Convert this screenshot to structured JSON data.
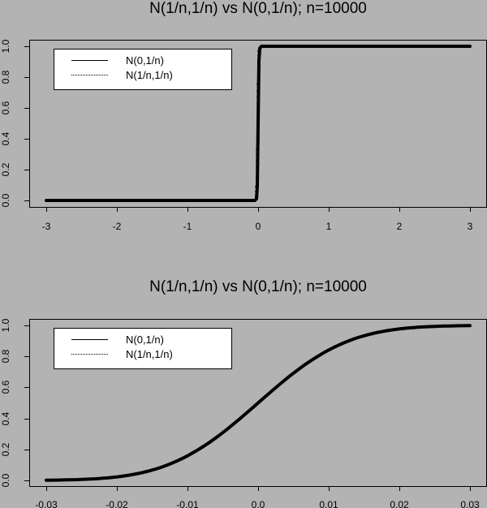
{
  "chart_data": [
    {
      "type": "line",
      "title": "N(1/n,1/n) vs N(0,1/n); n=10000",
      "xlabel": "",
      "ylabel": "",
      "xlim": [
        -3,
        3
      ],
      "ylim": [
        0,
        1
      ],
      "x_ticks": [
        "-3",
        "-2",
        "-1",
        "0",
        "1",
        "2",
        "3"
      ],
      "y_ticks": [
        "0.0",
        "0.2",
        "0.4",
        "0.6",
        "0.8",
        "1.0"
      ],
      "grid": false,
      "legend_position": "top-left",
      "legend": [
        {
          "label": "N(0,1/n)",
          "line_style": "solid"
        },
        {
          "label": "N(1/n,1/n)",
          "line_style": "dotted"
        }
      ],
      "series": [
        {
          "name": "N(0,1/n)",
          "line_style": "solid",
          "x": [
            -3,
            -2,
            -1,
            -0.05,
            -0.02,
            0,
            0.02,
            0.05,
            1,
            2,
            3
          ],
          "values": [
            0,
            0,
            0,
            0,
            0.023,
            0.5,
            0.977,
            1,
            1,
            1,
            1
          ]
        },
        {
          "name": "N(1/n,1/n)",
          "line_style": "dotted",
          "x": [
            -3,
            -2,
            -1,
            -0.05,
            -0.02,
            0,
            0.02,
            0.05,
            1,
            2,
            3
          ],
          "values": [
            0,
            0,
            0,
            0,
            0.023,
            0.5,
            0.977,
            1,
            1,
            1,
            1
          ]
        }
      ]
    },
    {
      "type": "line",
      "title": "N(1/n,1/n) vs N(0,1/n); n=10000",
      "xlabel": "",
      "ylabel": "",
      "xlim": [
        -0.03,
        0.03
      ],
      "ylim": [
        0,
        1
      ],
      "x_ticks": [
        "-0.03",
        "-0.02",
        "-0.01",
        "0.0",
        "0.01",
        "0.02",
        "0.03"
      ],
      "y_ticks": [
        "0.0",
        "0.2",
        "0.4",
        "0.6",
        "0.8",
        "1.0"
      ],
      "grid": false,
      "legend_position": "top-left",
      "legend": [
        {
          "label": "N(0,1/n)",
          "line_style": "solid"
        },
        {
          "label": "N(1/n,1/n)",
          "line_style": "dotted"
        }
      ],
      "series": [
        {
          "name": "N(0,1/n)",
          "line_style": "solid",
          "x": [
            -0.03,
            -0.025,
            -0.02,
            -0.015,
            -0.01,
            -0.005,
            0.0,
            0.005,
            0.01,
            0.015,
            0.02,
            0.025,
            0.03
          ],
          "values": [
            0.001,
            0.006,
            0.023,
            0.067,
            0.159,
            0.309,
            0.5,
            0.691,
            0.841,
            0.933,
            0.977,
            0.994,
            0.999
          ]
        },
        {
          "name": "N(1/n,1/n)",
          "line_style": "dotted",
          "x": [
            -0.03,
            -0.025,
            -0.02,
            -0.015,
            -0.01,
            -0.005,
            0.0,
            0.005,
            0.01,
            0.015,
            0.02,
            0.025,
            0.03
          ],
          "values": [
            0.001,
            0.006,
            0.023,
            0.067,
            0.159,
            0.309,
            0.5,
            0.691,
            0.841,
            0.933,
            0.977,
            0.994,
            0.999
          ]
        }
      ]
    }
  ],
  "plots": [
    {
      "title": "N(1/n,1/n) vs N(0,1/n); n=10000",
      "x_ticks": [
        "-3",
        "-2",
        "-1",
        "0",
        "1",
        "2",
        "3"
      ],
      "y_ticks": [
        "0.0",
        "0.2",
        "0.4",
        "0.6",
        "0.8",
        "1.0"
      ],
      "legend": [
        "N(0,1/n)",
        "N(1/n,1/n)"
      ]
    },
    {
      "title": "N(1/n,1/n) vs N(0,1/n); n=10000",
      "x_ticks": [
        "-0.03",
        "-0.02",
        "-0.01",
        "0.0",
        "0.01",
        "0.02",
        "0.03"
      ],
      "y_ticks": [
        "0.0",
        "0.2",
        "0.4",
        "0.6",
        "0.8",
        "1.0"
      ],
      "legend": [
        "N(0,1/n)",
        "N(1/n,1/n)"
      ]
    }
  ],
  "colors": {
    "background": "#b3b3b3",
    "line": "#000000",
    "legend_bg": "#ffffff"
  }
}
